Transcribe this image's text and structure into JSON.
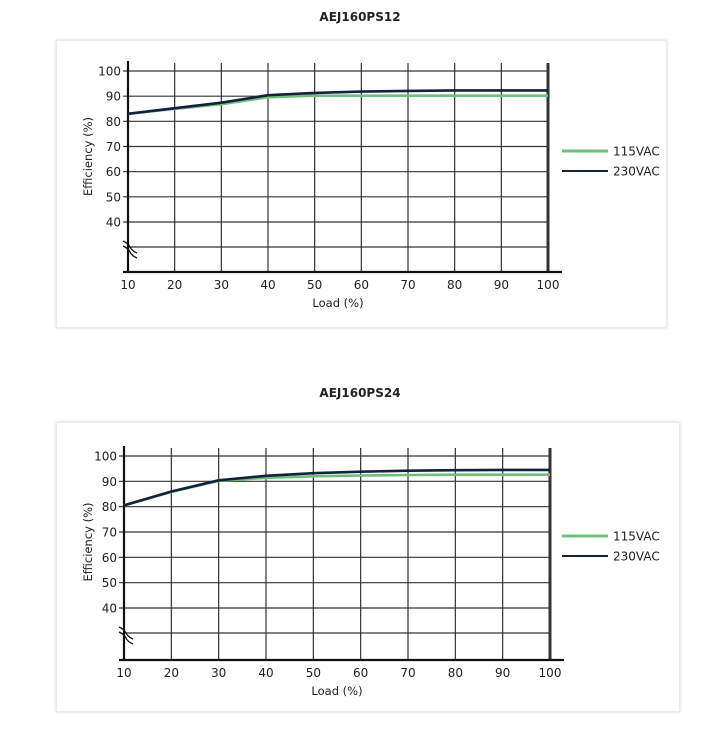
{
  "chart_data": [
    {
      "type": "line",
      "title": "AEJ160PS12",
      "xlabel": "Load (%)",
      "ylabel": "Efficiency (%)",
      "x": [
        10,
        20,
        30,
        40,
        50,
        60,
        70,
        80,
        90,
        100
      ],
      "x_ticks": [
        "10",
        "20",
        "30",
        "40",
        "50",
        "60",
        "70",
        "80",
        "90",
        "100"
      ],
      "y_ticks": [
        "40",
        "50",
        "60",
        "70",
        "80",
        "90",
        "100"
      ],
      "xlim": [
        10,
        100
      ],
      "ylim": [
        40,
        100
      ],
      "y_axis_break": true,
      "grid": true,
      "legend_position": "right",
      "series": [
        {
          "name": "115VAC",
          "color": "#6cc078",
          "values": [
            83,
            85,
            86.8,
            89.6,
            90.2,
            90.2,
            90.2,
            90.2,
            90.2,
            90.2
          ]
        },
        {
          "name": "230VAC",
          "color": "#14213d",
          "values": [
            83,
            85.2,
            87.4,
            90.4,
            91.3,
            91.8,
            92.1,
            92.3,
            92.3,
            92.3
          ]
        }
      ]
    },
    {
      "type": "line",
      "title": "AEJ160PS24",
      "xlabel": "Load (%)",
      "ylabel": "Efficiency (%)",
      "x": [
        10,
        20,
        30,
        40,
        50,
        60,
        70,
        80,
        90,
        100
      ],
      "x_ticks": [
        "10",
        "20",
        "30",
        "40",
        "50",
        "60",
        "70",
        "80",
        "90",
        "100"
      ],
      "y_ticks": [
        "40",
        "50",
        "60",
        "70",
        "80",
        "90",
        "100"
      ],
      "xlim": [
        10,
        100
      ],
      "ylim": [
        40,
        100
      ],
      "y_axis_break": true,
      "grid": true,
      "legend_position": "right",
      "series": [
        {
          "name": "115VAC",
          "color": "#6cc078",
          "values": [
            80.5,
            85.8,
            90.2,
            91.4,
            92.0,
            92.3,
            92.5,
            92.6,
            92.6,
            92.6
          ]
        },
        {
          "name": "230VAC",
          "color": "#14213d",
          "values": [
            80.5,
            86.0,
            90.4,
            92.2,
            93.2,
            93.8,
            94.2,
            94.4,
            94.5,
            94.5
          ]
        }
      ]
    }
  ]
}
